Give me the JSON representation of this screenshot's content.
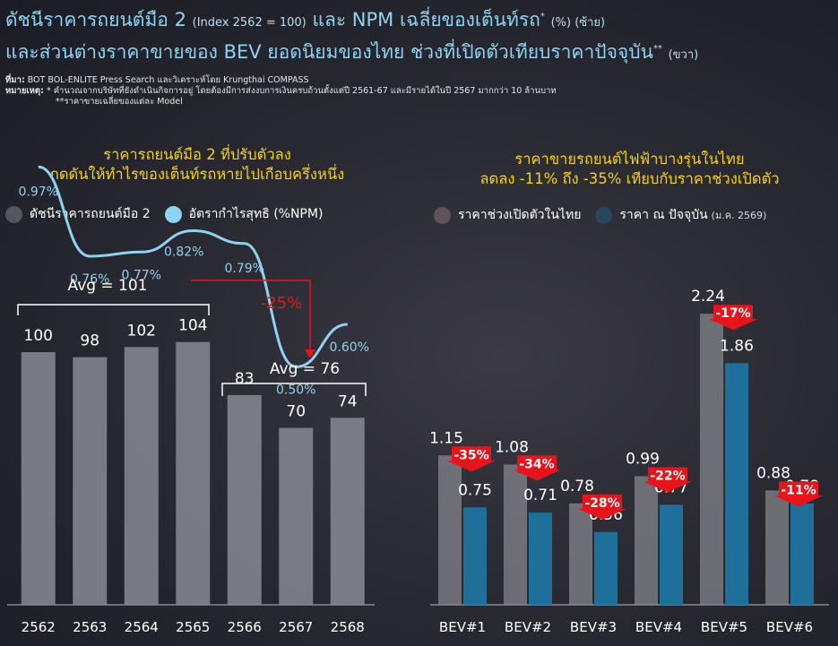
{
  "header": {
    "title_line1_main": "ดัชนีราคารถยนต์มือ 2",
    "title_line1_index": "(Index 2562 = 100)",
    "title_line1_mid": "และ NPM เฉลี่ยของเต็นท์รถ",
    "title_line1_sup": "*",
    "title_line1_unit": "(%) (ซ้าย)",
    "title_line2_main": "และส่วนต่างราคาขายของ BEV ยอดนิยมของไทย ช่วงที่เปิดตัวเทียบราคาปัจจุบัน",
    "title_line2_sup": "**",
    "title_line2_unit": "(ขวา)"
  },
  "notes": {
    "source_label": "ที่มา:",
    "source_text": "BOT BOL-ENLITE Press Search และวิเคราะห์โดย Krungthai COMPASS",
    "remark_label": "หมายเหตุ:",
    "remark_1": "* คำนวณจากบริษัทที่ยังดำเนินกิจการอยู่ โดยต้องมีการส่งงบการเงินครบถ้วนตั้งแต่ปี 2561-67 และมีรายได้ในปี 2567 มากกว่า 10 ล้านบาท",
    "remark_2": "**ราคาขายเฉลี่ยของแต่ละ Model"
  },
  "left": {
    "subhead_1": "ราคารถยนต์มือ 2 ที่ปรับตัวลง",
    "subhead_2": "กดดันให้ทำไรของเต็นท์รถหายไปเกือบครึ่งหนึ่ง",
    "legend_bar": "ดัชนีราคารถยนต์มือ 2",
    "legend_line": "อัตรากำไรสุทธิ (%NPM)"
  },
  "right": {
    "subhead_1": "ราคาขายรถยนต์ไฟฟ้าบางรุ่นในไทย",
    "subhead_2": "ลดลง -11% ถึง -35% เทียบกับราคาช่วงเปิดตัว",
    "legend_launch": "ราคาช่วงเปิดตัวในไทย",
    "legend_current": "ราคา ณ ปัจจุบัน",
    "legend_current_unit": "(ม.ค. 2569)"
  },
  "colors": {
    "bar_left": "#8a8a92",
    "line": "#8fd3f2",
    "bar_launch": "#8a8a92",
    "bar_current": "#1e6f9a",
    "badge": "#e8141b",
    "annot_red": "#e8141b",
    "subhead": "#f5d20a"
  },
  "chart_data": [
    {
      "type": "bar",
      "categories": [
        "2562",
        "2563",
        "2564",
        "2565",
        "2566",
        "2567",
        "2568"
      ],
      "series": [
        {
          "name": "ดัชนีราคารถยนต์มือ 2",
          "values": [
            100,
            98,
            102,
            104,
            83,
            70,
            74
          ]
        },
        {
          "name": "อัตรากำไรสุทธิ (%NPM)",
          "type": "line",
          "x": [
            "2562",
            "2563",
            "2564",
            "2565",
            "2566",
            "2567",
            "2568"
          ],
          "values": [
            0.97,
            0.76,
            0.77,
            0.82,
            0.79,
            0.5,
            0.6
          ],
          "labels": [
            "0.97%",
            "0.76%",
            "0.77%",
            "0.82%",
            "0.79%",
            "0.50%",
            "0.60%"
          ]
        }
      ],
      "annotations": {
        "avg_before": "Avg = 101",
        "avg_after": "Avg = 76",
        "change": "-25%"
      }
    },
    {
      "type": "bar",
      "categories": [
        "BEV#1",
        "BEV#2",
        "BEV#3",
        "BEV#4",
        "BEV#5",
        "BEV#6"
      ],
      "series": [
        {
          "name": "ราคาช่วงเปิดตัวในไทย",
          "values": [
            1.15,
            1.08,
            0.78,
            0.99,
            2.24,
            0.88
          ]
        },
        {
          "name": "ราคา ณ ปัจจุบัน (ม.ค. 2569)",
          "values": [
            0.75,
            0.71,
            0.56,
            0.77,
            1.86,
            0.78
          ]
        }
      ],
      "changes": [
        "-35%",
        "-34%",
        "-28%",
        "-22%",
        "-17%",
        "-11%"
      ]
    }
  ]
}
